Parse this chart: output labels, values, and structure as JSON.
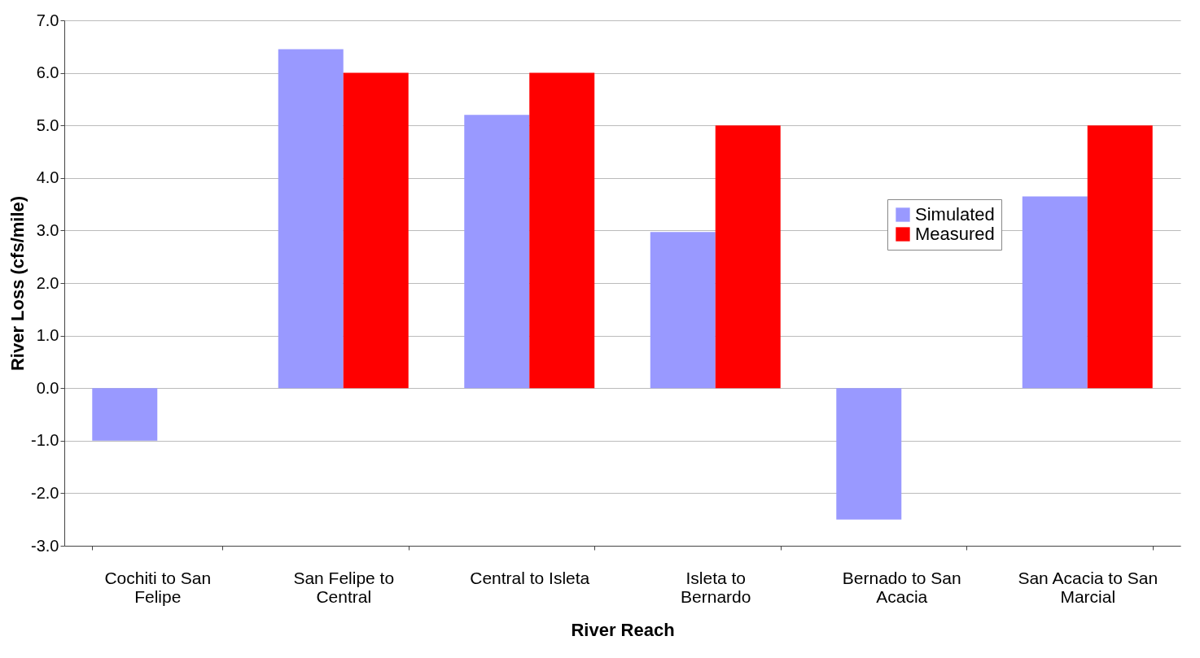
{
  "chart_data": {
    "type": "bar",
    "xlabel": "River Reach",
    "ylabel": "River Loss (cfs/mile)",
    "categories": [
      "Cochiti to San Felipe",
      "San Felipe to Central",
      "Central to Isleta",
      "Isleta to Bernardo",
      "Bernado to San Acacia",
      "San Acacia to San Marcial"
    ],
    "series": [
      {
        "name": "Simulated",
        "color": "#9999ff",
        "values": [
          -1.0,
          6.45,
          5.2,
          2.97,
          -2.5,
          3.65
        ]
      },
      {
        "name": "Measured",
        "color": "#ff0000",
        "values": [
          null,
          6.0,
          6.0,
          5.0,
          null,
          5.0
        ]
      }
    ],
    "ylim": [
      -3.0,
      7.0
    ],
    "yticks": [
      {
        "value": -3,
        "label": "-3.0"
      },
      {
        "value": -2,
        "label": "-2.0"
      },
      {
        "value": -1,
        "label": "-1.0"
      },
      {
        "value": 0,
        "label": "0.0"
      },
      {
        "value": 1,
        "label": "1.0"
      },
      {
        "value": 2,
        "label": "2.0"
      },
      {
        "value": 3,
        "label": "3.0"
      },
      {
        "value": 4,
        "label": "4.0"
      },
      {
        "value": 5,
        "label": "5.0"
      },
      {
        "value": 6,
        "label": "6.0"
      },
      {
        "value": 7,
        "label": "7.0"
      }
    ],
    "grid": "y",
    "legend": "top right"
  }
}
